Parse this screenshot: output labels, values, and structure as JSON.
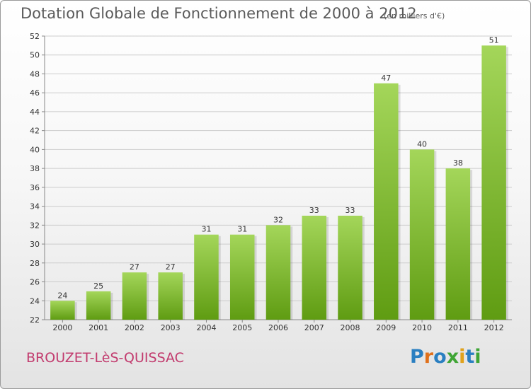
{
  "title": "Dotation Globale de Fonctionnement de 2000 à 2012",
  "subtitle": "(en milliers d'€)",
  "town": "BROUZET-LèS-QUISSAC",
  "logo": {
    "letters": [
      "P",
      "r",
      "o",
      "x",
      "i",
      "t",
      "i"
    ],
    "colors": [
      "#2a7fc1",
      "#e0711c",
      "#2a7fc1",
      "#3fa535",
      "#e0a21c",
      "#2a7fc1",
      "#3fa535"
    ]
  },
  "colors": {
    "bar_top": "#a4d65a",
    "bar_bottom": "#5f9c12",
    "grid": "#cccccc"
  },
  "chart_data": {
    "type": "bar",
    "categories": [
      "2000",
      "2001",
      "2002",
      "2003",
      "2004",
      "2005",
      "2006",
      "2007",
      "2008",
      "2009",
      "2010",
      "2011",
      "2012"
    ],
    "values": [
      24,
      25,
      27,
      27,
      31,
      31,
      32,
      33,
      33,
      47,
      40,
      38,
      51
    ],
    "title": "Dotation Globale de Fonctionnement de 2000 à 2012",
    "ylabel": "",
    "xlabel": "",
    "ylim": [
      22,
      52
    ],
    "yticks": [
      22,
      24,
      26,
      28,
      30,
      32,
      34,
      36,
      38,
      40,
      42,
      44,
      46,
      48,
      50,
      52
    ],
    "grid": true,
    "data_labels": true
  }
}
